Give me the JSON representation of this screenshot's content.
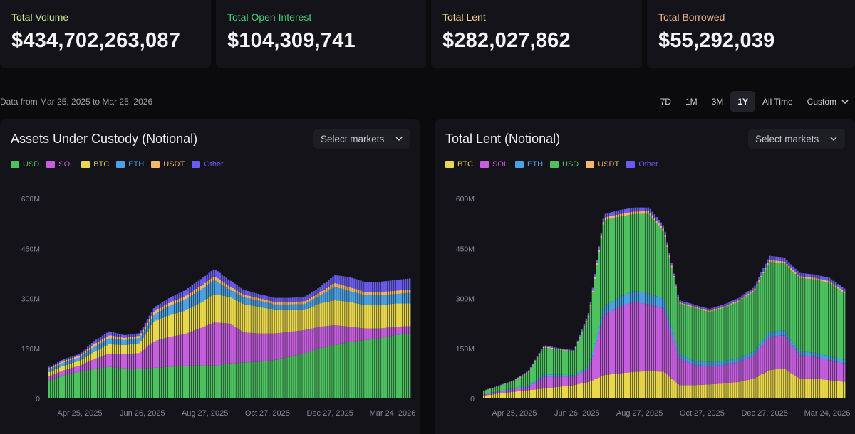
{
  "stats": [
    {
      "label": "Total Volume",
      "value": "$434,702,263,087",
      "color": "#c8e88a"
    },
    {
      "label": "Total Open Interest",
      "value": "$104,309,741",
      "color": "#3fd27a"
    },
    {
      "label": "Total Lent",
      "value": "$282,027,862",
      "color": "#f0d28c"
    },
    {
      "label": "Total Borrowed",
      "value": "$55,292,039",
      "color": "#f0b088"
    }
  ],
  "range_text": "Data from Mar 25, 2025 to Mar 25, 2026",
  "tabs": [
    "7D",
    "1M",
    "3M",
    "1Y",
    "All Time"
  ],
  "active_tab": "1Y",
  "custom_label": "Custom",
  "select_label": "Select markets",
  "colors": {
    "USD": "#4cc35f",
    "SOL": "#c65ee0",
    "BTC": "#e9d84a",
    "ETH": "#4ba3e6",
    "USDT": "#f2b86b",
    "Other": "#6a5cf0"
  },
  "chart_data": [
    {
      "type": "area",
      "stacked": true,
      "title": "Assets Under Custody (Notional)",
      "ylim": [
        0,
        600
      ],
      "yticks": [
        "0",
        "150M",
        "300M",
        "450M",
        "600M"
      ],
      "xticks": [
        "Apr 25, 2025",
        "Jun 26, 2025",
        "Aug 27, 2025",
        "Oct 27, 2025",
        "Dec 27, 2025",
        "Mar 24, 2026"
      ],
      "x": [
        "Mar 25",
        "Apr 10",
        "Apr 25",
        "May 10",
        "May 25",
        "Jun 10",
        "Jun 26",
        "Jul 12",
        "Jul 28",
        "Aug 12",
        "Aug 27",
        "Sep 12",
        "Sep 28",
        "Oct 12",
        "Oct 27",
        "Nov 12",
        "Nov 27",
        "Dec 12",
        "Dec 27",
        "Jan 12",
        "Jan 28",
        "Feb 12",
        "Feb 28",
        "Mar 12",
        "Mar 24"
      ],
      "series": [
        {
          "name": "USD",
          "values": [
            55,
            70,
            80,
            88,
            95,
            90,
            88,
            92,
            95,
            98,
            100,
            98,
            105,
            108,
            110,
            115,
            125,
            135,
            150,
            160,
            170,
            175,
            180,
            190,
            195
          ]
        },
        {
          "name": "SOL",
          "values": [
            12,
            15,
            18,
            30,
            40,
            42,
            48,
            80,
            90,
            95,
            110,
            130,
            120,
            90,
            85,
            80,
            75,
            70,
            65,
            60,
            45,
            35,
            30,
            25,
            22
          ]
        },
        {
          "name": "BTC",
          "values": [
            12,
            14,
            15,
            22,
            28,
            28,
            30,
            60,
            65,
            70,
            75,
            85,
            80,
            85,
            80,
            70,
            65,
            60,
            70,
            75,
            75,
            70,
            70,
            70,
            68
          ]
        },
        {
          "name": "ETH",
          "values": [
            8,
            10,
            10,
            15,
            18,
            15,
            15,
            20,
            28,
            33,
            38,
            42,
            22,
            20,
            18,
            17,
            17,
            18,
            23,
            40,
            32,
            30,
            30,
            28,
            32
          ]
        },
        {
          "name": "USDT",
          "values": [
            4,
            5,
            5,
            8,
            9,
            7,
            7,
            10,
            10,
            10,
            12,
            12,
            10,
            8,
            8,
            8,
            8,
            9,
            10,
            12,
            12,
            10,
            10,
            10,
            10
          ]
        },
        {
          "name": "Other",
          "values": [
            4,
            5,
            5,
            10,
            12,
            8,
            8,
            12,
            14,
            18,
            20,
            22,
            18,
            14,
            12,
            12,
            12,
            13,
            16,
            23,
            30,
            30,
            30,
            32,
            33
          ]
        }
      ]
    },
    {
      "type": "area",
      "stacked": true,
      "title": "Total Lent (Notional)",
      "ylim": [
        0,
        600
      ],
      "yticks": [
        "0",
        "150M",
        "300M",
        "450M",
        "600M"
      ],
      "xticks": [
        "Apr 25, 2025",
        "Jun 26, 2025",
        "Aug 27, 2025",
        "Oct 27, 2025",
        "Dec 27, 2025",
        "Mar 24, 2026"
      ],
      "x": [
        "Mar 25",
        "Apr 10",
        "Apr 25",
        "May 10",
        "May 25",
        "Jun 10",
        "Jun 26",
        "Jul 12",
        "Jul 28",
        "Aug 12",
        "Aug 27",
        "Sep 12",
        "Sep 28",
        "Oct 12",
        "Oct 27",
        "Nov 12",
        "Nov 27",
        "Dec 12",
        "Dec 27",
        "Jan 12",
        "Jan 28",
        "Feb 12",
        "Feb 28",
        "Mar 12",
        "Mar 24"
      ],
      "series": [
        {
          "name": "BTC",
          "values": [
            8,
            15,
            20,
            25,
            30,
            35,
            40,
            50,
            70,
            75,
            80,
            82,
            80,
            40,
            40,
            42,
            45,
            50,
            60,
            85,
            90,
            60,
            60,
            55,
            50
          ]
        },
        {
          "name": "SOL",
          "values": [
            3,
            5,
            8,
            10,
            35,
            30,
            25,
            40,
            180,
            200,
            210,
            200,
            190,
            80,
            60,
            55,
            55,
            60,
            70,
            100,
            100,
            70,
            65,
            60,
            55
          ]
        },
        {
          "name": "ETH",
          "values": [
            1,
            2,
            3,
            5,
            8,
            6,
            5,
            8,
            25,
            30,
            33,
            32,
            30,
            15,
            12,
            12,
            12,
            12,
            12,
            15,
            15,
            12,
            12,
            12,
            11
          ]
        },
        {
          "name": "USD",
          "values": [
            10,
            15,
            20,
            40,
            80,
            75,
            70,
            150,
            260,
            240,
            230,
            240,
            200,
            150,
            160,
            150,
            160,
            170,
            180,
            210,
            200,
            220,
            220,
            220,
            200
          ]
        },
        {
          "name": "USDT",
          "values": [
            1,
            1,
            2,
            2,
            3,
            2,
            2,
            5,
            8,
            8,
            8,
            8,
            6,
            4,
            4,
            4,
            4,
            4,
            5,
            6,
            6,
            5,
            5,
            5,
            5
          ]
        },
        {
          "name": "Other",
          "values": [
            1,
            1,
            2,
            3,
            4,
            3,
            3,
            8,
            10,
            12,
            12,
            11,
            10,
            6,
            6,
            6,
            7,
            7,
            8,
            12,
            12,
            10,
            10,
            10,
            9
          ]
        }
      ]
    }
  ]
}
